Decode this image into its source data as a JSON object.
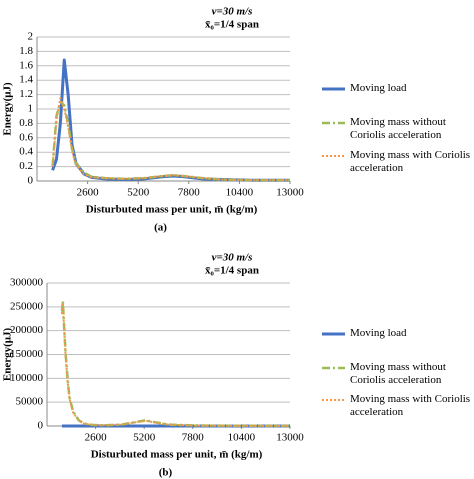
{
  "chart_data": [
    {
      "type": "line",
      "title": "v=30 m/s",
      "subtitle": "x̄₀=1/4 span",
      "xlabel": "Disturbuted mass per unit, m̄  (kg/m)",
      "ylabel": "Energy(μJ)",
      "caption": "(a)",
      "x": [
        800,
        1000,
        1200,
        1400,
        1600,
        1800,
        2000,
        2400,
        2800,
        3500,
        4500,
        5500,
        6500,
        7000,
        7500,
        8500,
        9500,
        11000,
        13000
      ],
      "series": [
        {
          "name": "Moving load",
          "color": "#4472c4",
          "values": [
            0.15,
            0.3,
            0.8,
            1.68,
            1.2,
            0.5,
            0.25,
            0.1,
            0.05,
            0.03,
            0.02,
            0.03,
            0.06,
            0.07,
            0.06,
            0.03,
            0.02,
            0.01,
            0.01
          ]
        },
        {
          "name": "Moving mass without Coriolis acceleration",
          "color": "#9bbb59",
          "values": [
            0.2,
            0.9,
            1.1,
            1.05,
            0.8,
            0.45,
            0.25,
            0.12,
            0.06,
            0.04,
            0.03,
            0.04,
            0.07,
            0.08,
            0.07,
            0.04,
            0.02,
            0.01,
            0.01
          ]
        },
        {
          "name": "Moving mass with Coriolis acceleration",
          "color": "#f79646",
          "values": [
            0.2,
            0.85,
            1.15,
            1.0,
            0.75,
            0.42,
            0.22,
            0.1,
            0.05,
            0.04,
            0.03,
            0.04,
            0.07,
            0.08,
            0.07,
            0.04,
            0.02,
            0.01,
            0.01
          ]
        }
      ],
      "xlim": [
        0,
        13000
      ],
      "xticks": [
        2600,
        5200,
        7800,
        10400,
        13000
      ],
      "ylim": [
        0,
        2
      ],
      "yticks": [
        0,
        0.2,
        0.4,
        0.6,
        0.8,
        1,
        1.2,
        1.4,
        1.6,
        1.8,
        2
      ],
      "grid": true
    },
    {
      "type": "line",
      "title": "v=30 m/s",
      "subtitle": "x̄₀=1/4 span",
      "xlabel": "Disturbuted mass per unit, m̄  (kg/m)",
      "ylabel": "Energy(μJ)",
      "caption": "(b)",
      "x": [
        800,
        850,
        900,
        1000,
        1100,
        1200,
        1400,
        1700,
        2000,
        2500,
        3000,
        4000,
        5000,
        5300,
        5600,
        6500,
        8000,
        10000,
        13000
      ],
      "series": [
        {
          "name": "Moving load",
          "color": "#4472c4",
          "values": [
            40,
            45,
            40,
            35,
            30,
            25,
            20,
            15,
            10,
            8,
            6,
            5,
            8,
            9,
            7,
            4,
            3,
            2,
            1
          ]
        },
        {
          "name": "Moving mass without Coriolis acceleration",
          "color": "#9bbb59",
          "values": [
            240000,
            262000,
            220000,
            150000,
            100000,
            60000,
            30000,
            12000,
            5000,
            2000,
            1500,
            3000,
            10000,
            12000,
            9000,
            3000,
            1000,
            500,
            300
          ]
        },
        {
          "name": "Moving mass with Coriolis acceleration",
          "color": "#f79646",
          "values": [
            235000,
            258000,
            215000,
            145000,
            95000,
            58000,
            28000,
            11000,
            4500,
            2000,
            1500,
            3000,
            9500,
            11000,
            8500,
            2800,
            900,
            400,
            300
          ]
        }
      ],
      "xlim": [
        0,
        13000
      ],
      "xticks": [
        2600,
        5200,
        7800,
        10400,
        13000
      ],
      "ylim": [
        0,
        300000
      ],
      "yticks": [
        0,
        50000,
        100000,
        150000,
        200000,
        250000,
        300000
      ],
      "grid": true
    }
  ]
}
